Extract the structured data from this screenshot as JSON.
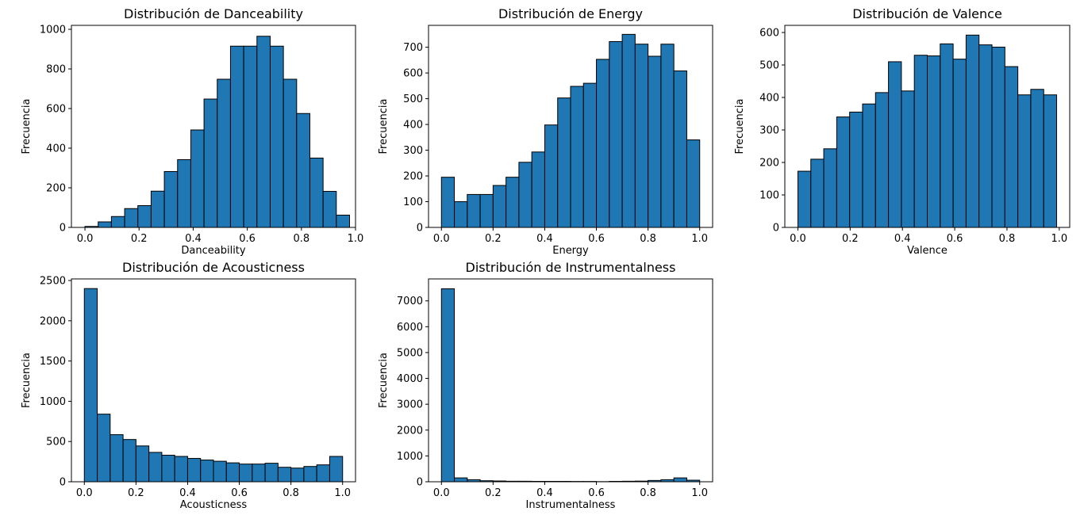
{
  "chart_data": [
    {
      "type": "bar",
      "title": "Distribución de Danceability",
      "xlabel": "Danceability",
      "ylabel": "Frecuencia",
      "xlim": [
        -0.05,
        1.0
      ],
      "ylim": [
        0,
        1020
      ],
      "xticks": [
        0.0,
        0.2,
        0.4,
        0.6,
        0.8,
        1.0
      ],
      "yticks": [
        0,
        200,
        400,
        600,
        800,
        1000
      ],
      "bin_edges": [
        0.0,
        0.0489,
        0.0978,
        0.1467,
        0.1956,
        0.2445,
        0.2934,
        0.3423,
        0.3912,
        0.4401,
        0.489,
        0.5379,
        0.5868,
        0.6357,
        0.6846,
        0.7335,
        0.7824,
        0.8313,
        0.8802,
        0.9291,
        0.978
      ],
      "values": [
        5,
        28,
        55,
        95,
        110,
        183,
        282,
        342,
        492,
        648,
        748,
        915,
        915,
        965,
        915,
        748,
        575,
        350,
        182,
        62
      ]
    },
    {
      "type": "bar",
      "title": "Distribución de Energy",
      "xlabel": "Energy",
      "ylabel": "Frecuencia",
      "xlim": [
        -0.05,
        1.05
      ],
      "ylim": [
        0,
        785
      ],
      "xticks": [
        0.0,
        0.2,
        0.4,
        0.6,
        0.8,
        1.0
      ],
      "yticks": [
        0,
        100,
        200,
        300,
        400,
        500,
        600,
        700
      ],
      "bin_edges": [
        0.0,
        0.05,
        0.1,
        0.15,
        0.2,
        0.25,
        0.3,
        0.35,
        0.4,
        0.45,
        0.5,
        0.55,
        0.6,
        0.65,
        0.7,
        0.75,
        0.8,
        0.85,
        0.9,
        0.95,
        1.0
      ],
      "values": [
        195,
        100,
        128,
        128,
        163,
        195,
        253,
        293,
        398,
        503,
        548,
        560,
        653,
        722,
        750,
        712,
        665,
        712,
        608,
        340
      ]
    },
    {
      "type": "bar",
      "title": "Distribución de Valence",
      "xlabel": "Valence",
      "ylabel": "Frecuencia",
      "xlim": [
        -0.05,
        1.04
      ],
      "ylim": [
        0,
        622
      ],
      "xticks": [
        0.0,
        0.2,
        0.4,
        0.6,
        0.8,
        1.0
      ],
      "yticks": [
        0,
        100,
        200,
        300,
        400,
        500,
        600
      ],
      "bin_edges": [
        0.0,
        0.0495,
        0.099,
        0.1485,
        0.198,
        0.2475,
        0.297,
        0.3465,
        0.396,
        0.4455,
        0.495,
        0.5445,
        0.594,
        0.6435,
        0.693,
        0.7425,
        0.792,
        0.8415,
        0.891,
        0.9405,
        0.99
      ],
      "values": [
        173,
        210,
        242,
        340,
        355,
        380,
        415,
        510,
        420,
        530,
        528,
        565,
        518,
        592,
        562,
        555,
        495,
        408,
        425,
        408
      ]
    },
    {
      "type": "bar",
      "title": "Distribución de Acousticness",
      "xlabel": "Acousticness",
      "ylabel": "Frecuencia",
      "xlim": [
        -0.05,
        1.05
      ],
      "ylim": [
        0,
        2520
      ],
      "xticks": [
        0.0,
        0.2,
        0.4,
        0.6,
        0.8,
        1.0
      ],
      "yticks": [
        0,
        500,
        1000,
        1500,
        2000,
        2500
      ],
      "bin_edges": [
        0.0,
        0.05,
        0.1,
        0.15,
        0.2,
        0.25,
        0.3,
        0.35,
        0.4,
        0.45,
        0.5,
        0.55,
        0.6,
        0.65,
        0.7,
        0.75,
        0.8,
        0.85,
        0.9,
        0.95,
        1.0
      ],
      "values": [
        2400,
        840,
        585,
        525,
        445,
        365,
        330,
        315,
        290,
        270,
        255,
        235,
        220,
        220,
        230,
        180,
        170,
        190,
        210,
        315
      ]
    },
    {
      "type": "bar",
      "title": "Distribución de Instrumentalness",
      "xlabel": "Instrumentalness",
      "ylabel": "Frecuencia",
      "xlim": [
        -0.05,
        1.05
      ],
      "ylim": [
        0,
        7850
      ],
      "xticks": [
        0.0,
        0.2,
        0.4,
        0.6,
        0.8,
        1.0
      ],
      "yticks": [
        0,
        1000,
        2000,
        3000,
        4000,
        5000,
        6000,
        7000
      ],
      "bin_edges": [
        0.0,
        0.05,
        0.1,
        0.15,
        0.2,
        0.25,
        0.3,
        0.35,
        0.4,
        0.45,
        0.5,
        0.55,
        0.6,
        0.65,
        0.7,
        0.75,
        0.8,
        0.85,
        0.9,
        0.95,
        1.0
      ],
      "values": [
        7470,
        150,
        80,
        40,
        30,
        20,
        20,
        15,
        15,
        15,
        12,
        12,
        5,
        15,
        20,
        25,
        50,
        80,
        150,
        60
      ]
    }
  ],
  "colors": {
    "bar_fill": "#1f77b4",
    "bar_edge": "#000000",
    "axis": "#000000"
  }
}
